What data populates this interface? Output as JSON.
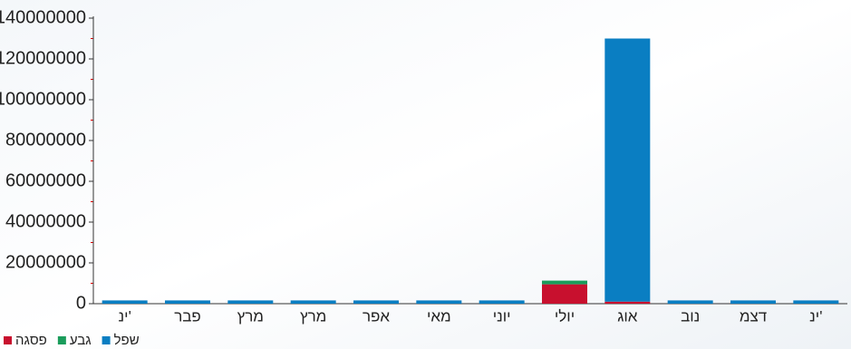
{
  "chart_data": {
    "type": "stacked-bar",
    "categories": [
      "ינ'",
      "פבר",
      "מרץ",
      "מרץ",
      "אפר",
      "מאי",
      "יוני",
      "יולי",
      "אוג",
      "נוב",
      "דצמ",
      "ינ'"
    ],
    "series": [
      {
        "name": "פסגה",
        "color": "#c8102e",
        "values": [
          0,
          0,
          0,
          0,
          0,
          0,
          0,
          9500000,
          1000000,
          0,
          0,
          0
        ]
      },
      {
        "name": "גבע",
        "color": "#1a9c5b",
        "values": [
          0,
          0,
          0,
          0,
          0,
          0,
          0,
          1800000,
          0,
          0,
          0,
          0
        ]
      },
      {
        "name": "שפל",
        "color": "#0a7ec2",
        "values": [
          1600000,
          1600000,
          1600000,
          1600000,
          1600000,
          1600000,
          1600000,
          0,
          129000000,
          1600000,
          1600000,
          1600000
        ]
      }
    ],
    "ylim": [
      0,
      140000000
    ],
    "yticks": [
      0,
      20000000,
      40000000,
      60000000,
      80000000,
      100000000,
      120000000,
      140000000
    ]
  }
}
